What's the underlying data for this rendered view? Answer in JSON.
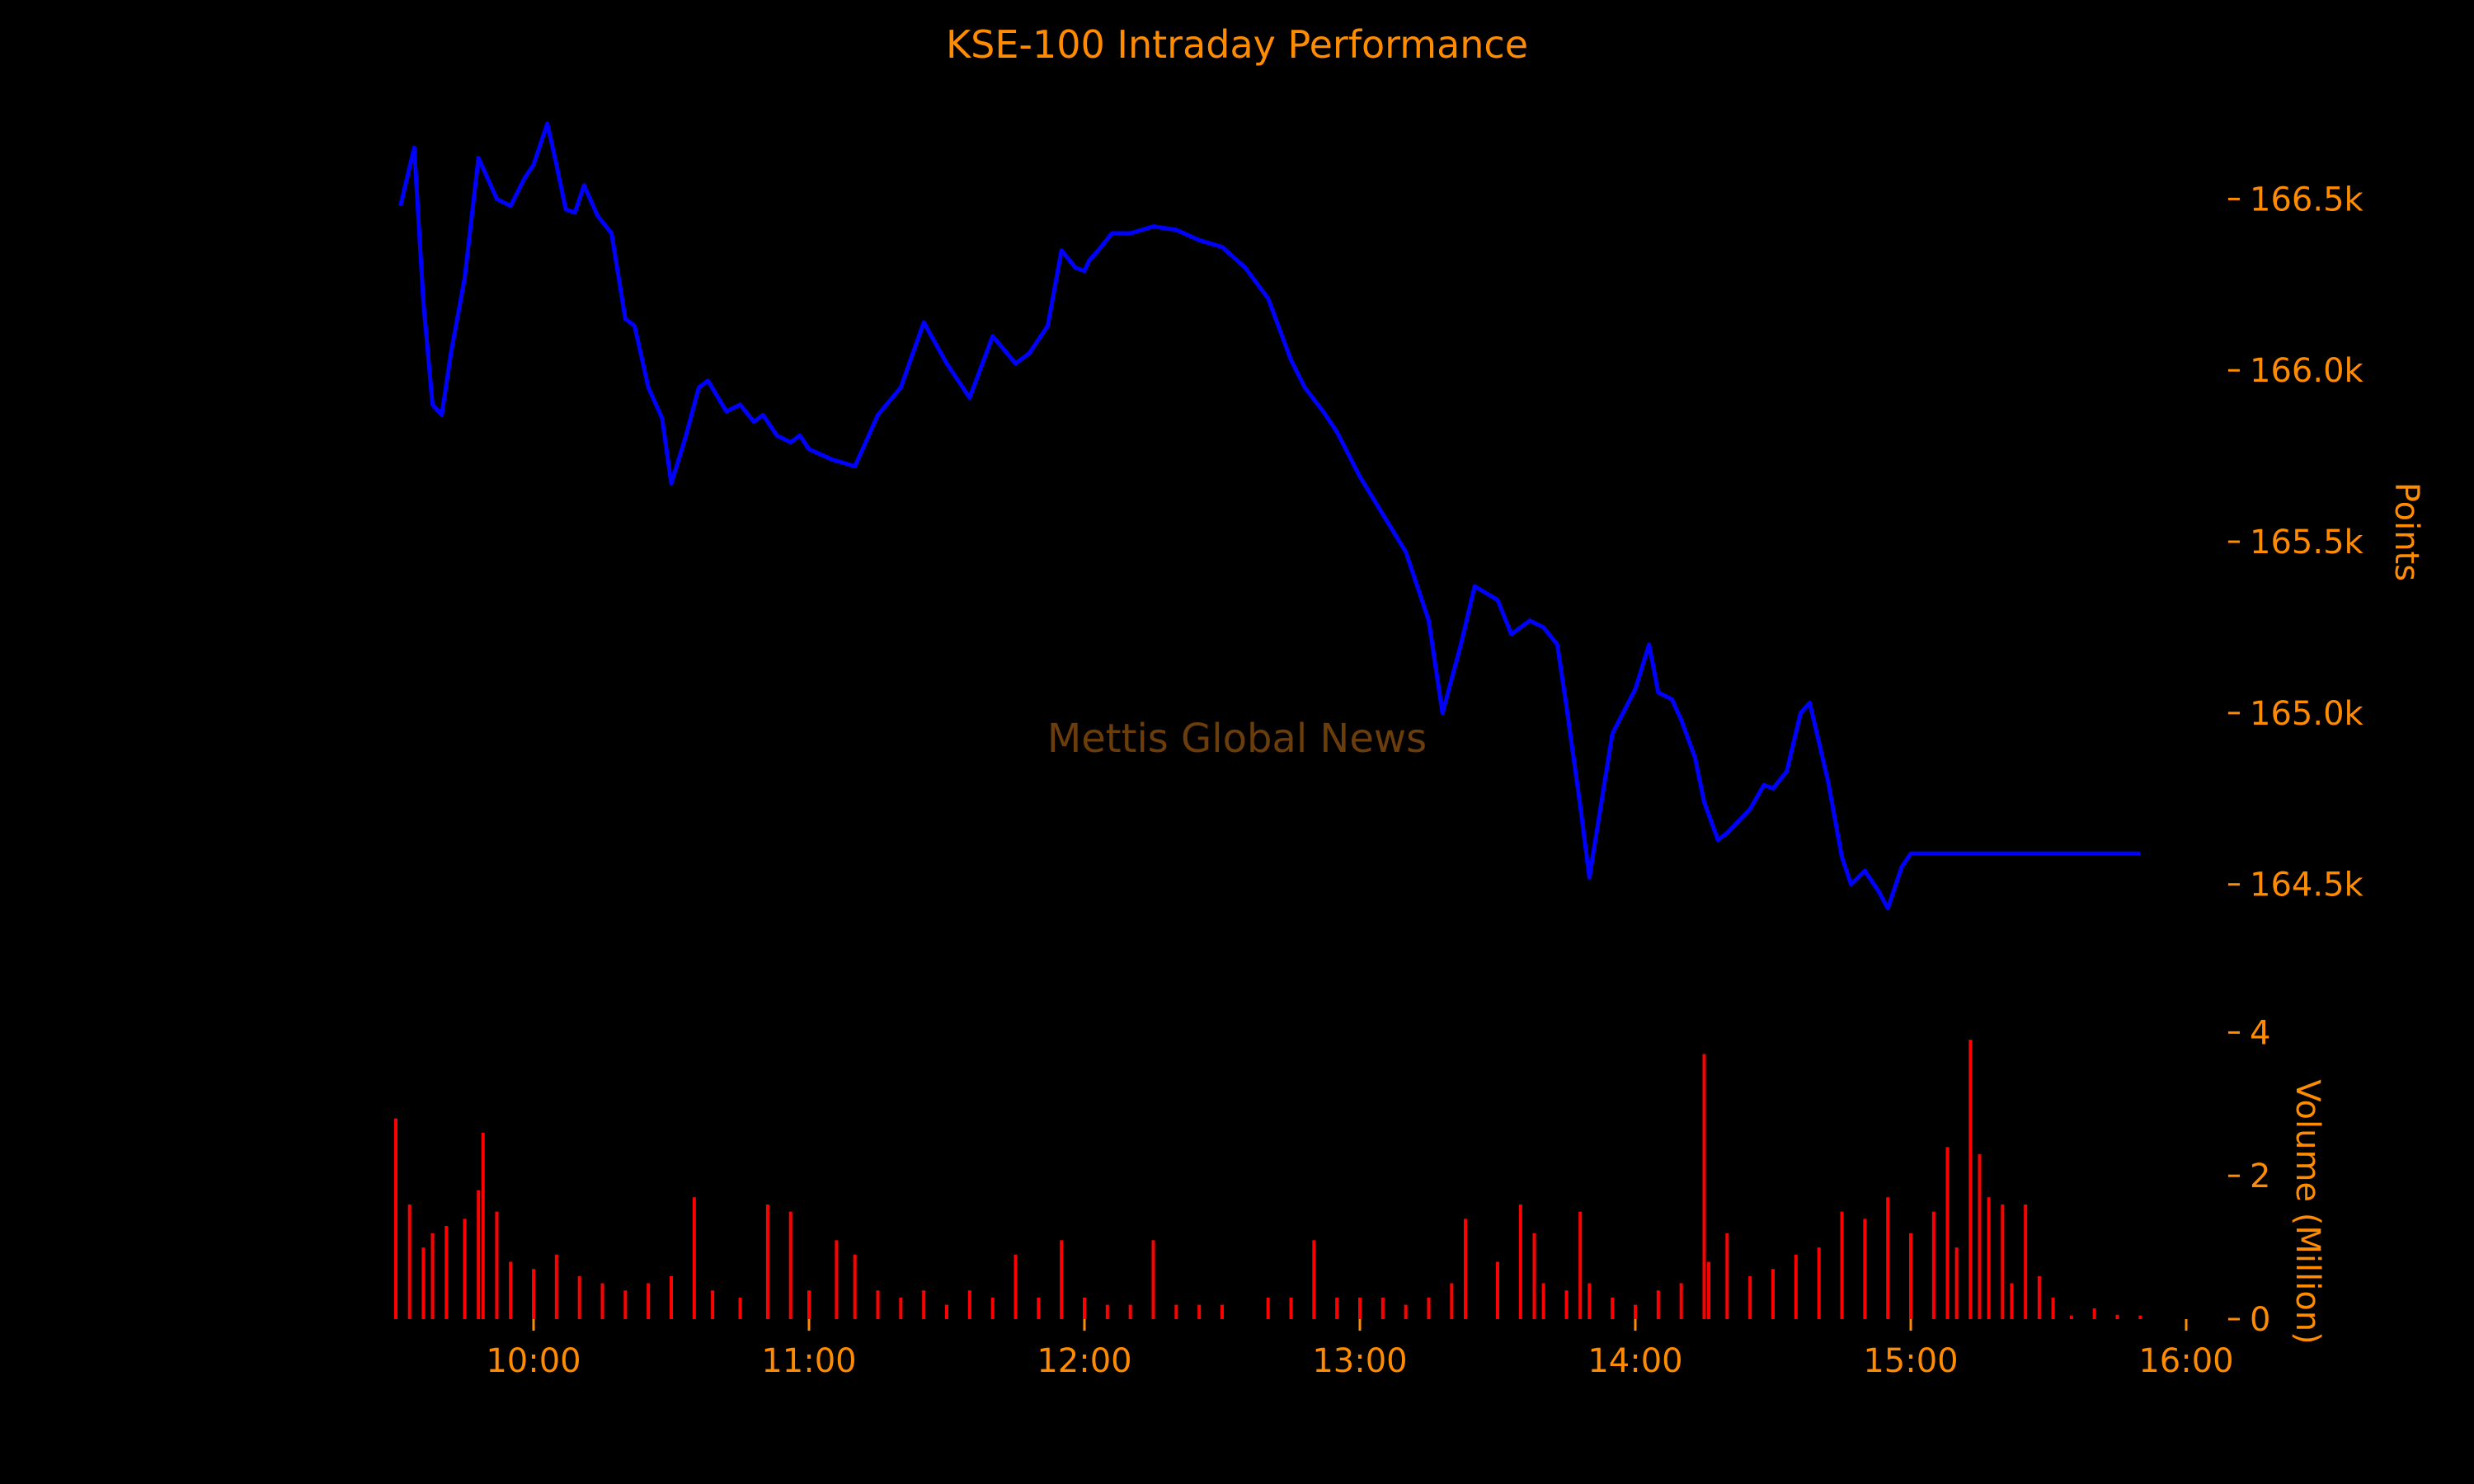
{
  "colors": {
    "background": "#000000",
    "text": "#ff8c00",
    "price_line": "#0000ff",
    "volume_bars": "#ff0000",
    "watermark": "#6b3d0b"
  },
  "chart_data": {
    "type": "line",
    "title": "KSE-100 Intraday Performance",
    "watermark": "Mettis Global News",
    "grid": false,
    "price": {
      "ylabel": "Points",
      "ylim": [
        164290,
        166780
      ],
      "yticks": [
        164500,
        165000,
        165500,
        166000,
        166500
      ],
      "ytick_labels": [
        "164.5k",
        "165.0k",
        "165.5k",
        "166.0k",
        "166.5k"
      ],
      "series": [
        {
          "x": [
            "09:31",
            "09:34",
            "09:36",
            "09:38",
            "09:40",
            "09:42",
            "09:45",
            "09:48",
            "09:52",
            "09:55",
            "09:58",
            "10:00",
            "10:03",
            "10:05",
            "10:07",
            "10:09",
            "10:11",
            "10:14",
            "10:17",
            "10:20",
            "10:22",
            "10:25",
            "10:28",
            "10:30",
            "10:33",
            "10:36",
            "10:38",
            "10:42",
            "10:45",
            "10:48",
            "10:50",
            "10:53",
            "10:56",
            "10:58",
            "11:00",
            "11:05",
            "11:10",
            "11:15",
            "11:20",
            "11:25",
            "11:30",
            "11:35",
            "11:40",
            "11:45",
            "11:48",
            "11:52",
            "11:55",
            "11:58",
            "12:00",
            "12:01",
            "12:03",
            "12:06",
            "12:10",
            "12:15",
            "12:20",
            "12:25",
            "12:30",
            "12:35",
            "12:40",
            "12:45",
            "12:48",
            "12:52",
            "12:55",
            "13:00",
            "13:05",
            "13:10",
            "13:15",
            "13:18",
            "13:22",
            "13:25",
            "13:30",
            "13:33",
            "13:35",
            "13:37",
            "13:40",
            "13:43",
            "13:45",
            "13:48",
            "13:50",
            "13:55",
            "14:00",
            "14:03",
            "14:05",
            "14:08",
            "14:10",
            "14:13",
            "14:15",
            "14:18",
            "14:20",
            "14:25",
            "14:28",
            "14:30",
            "14:33",
            "14:36",
            "14:38",
            "14:42",
            "14:45",
            "14:47",
            "14:50",
            "14:53",
            "14:55",
            "14:58",
            "15:00",
            "15:02",
            "15:05",
            "15:08",
            "15:10",
            "15:12",
            "15:15",
            "15:18",
            "15:20",
            "15:22",
            "15:24",
            "15:26",
            "15:28",
            "15:30",
            "15:31",
            "15:40",
            "15:50"
          ],
          "y": [
            166480,
            166650,
            166200,
            165900,
            165870,
            166050,
            166270,
            166620,
            166500,
            166480,
            166560,
            166600,
            166720,
            166600,
            166470,
            166460,
            166540,
            166450,
            166400,
            166150,
            166130,
            165950,
            165860,
            165670,
            165800,
            165950,
            165970,
            165880,
            165900,
            165850,
            165870,
            165810,
            165790,
            165810,
            165770,
            165740,
            165720,
            165870,
            165950,
            166140,
            166020,
            165920,
            166100,
            166020,
            166050,
            166130,
            166350,
            166300,
            166290,
            166320,
            166350,
            166400,
            166400,
            166420,
            166410,
            166380,
            166360,
            166300,
            166210,
            166030,
            165950,
            165880,
            165820,
            165690,
            165580,
            165470,
            165270,
            165000,
            165200,
            165370,
            165330,
            165230,
            165250,
            165270,
            165250,
            165200,
            165020,
            164730,
            164520,
            164940,
            165070,
            165200,
            165060,
            165040,
            164980,
            164870,
            164740,
            164630,
            164650,
            164720,
            164790,
            164780,
            164830,
            165000,
            165030,
            164800,
            164580,
            164500,
            164540,
            164480,
            164430,
            164550,
            164590,
            164590,
            164590,
            164590,
            164590,
            164590,
            164590,
            164590,
            164590,
            164590,
            164590,
            164590,
            164590,
            164590,
            164590,
            164590,
            164590
          ]
        }
      ]
    },
    "volume": {
      "ylabel": "Volume (Million)",
      "ylim": [
        0,
        4.2
      ],
      "yticks": [
        0,
        2,
        4
      ],
      "ytick_labels": [
        "0",
        "2",
        "4"
      ],
      "series": [
        {
          "x": [
            "09:30",
            "09:33",
            "09:36",
            "09:38",
            "09:41",
            "09:45",
            "09:48",
            "09:49",
            "09:52",
            "09:55",
            "10:00",
            "10:05",
            "10:10",
            "10:15",
            "10:20",
            "10:25",
            "10:30",
            "10:35",
            "10:39",
            "10:45",
            "10:51",
            "10:56",
            "11:00",
            "11:06",
            "11:10",
            "11:15",
            "11:20",
            "11:25",
            "11:30",
            "11:35",
            "11:40",
            "11:45",
            "11:50",
            "11:55",
            "12:00",
            "12:05",
            "12:10",
            "12:15",
            "12:20",
            "12:25",
            "12:30",
            "12:40",
            "12:45",
            "12:50",
            "12:55",
            "13:00",
            "13:05",
            "13:10",
            "13:15",
            "13:20",
            "13:23",
            "13:30",
            "13:35",
            "13:38",
            "13:40",
            "13:45",
            "13:48",
            "13:50",
            "13:55",
            "14:00",
            "14:05",
            "14:10",
            "14:15",
            "14:16",
            "14:20",
            "14:25",
            "14:30",
            "14:35",
            "14:40",
            "14:45",
            "14:50",
            "14:55",
            "15:00",
            "15:05",
            "15:08",
            "15:10",
            "15:13",
            "15:15",
            "15:17",
            "15:20",
            "15:22",
            "15:25",
            "15:28",
            "15:31",
            "15:35",
            "15:40",
            "15:45",
            "15:50"
          ],
          "y": [
            2.8,
            1.6,
            1.0,
            1.2,
            1.3,
            1.4,
            1.8,
            2.6,
            1.5,
            0.8,
            0.7,
            0.9,
            0.6,
            0.5,
            0.4,
            0.5,
            0.6,
            1.7,
            0.4,
            0.3,
            1.6,
            1.5,
            0.4,
            1.1,
            0.9,
            0.4,
            0.3,
            0.4,
            0.2,
            0.4,
            0.3,
            0.9,
            0.3,
            1.1,
            0.3,
            0.2,
            0.2,
            1.1,
            0.2,
            0.2,
            0.2,
            0.3,
            0.3,
            1.1,
            0.3,
            0.3,
            0.3,
            0.2,
            0.3,
            0.5,
            1.4,
            0.8,
            1.6,
            1.2,
            0.5,
            0.4,
            1.5,
            0.5,
            0.3,
            0.2,
            0.4,
            0.5,
            3.7,
            0.8,
            1.2,
            0.6,
            0.7,
            0.9,
            1.0,
            1.5,
            1.4,
            1.7,
            1.2,
            1.5,
            2.4,
            1.0,
            3.9,
            2.3,
            1.7,
            1.6,
            0.5,
            1.6,
            0.6,
            0.3,
            0.05,
            0.15,
            0.06,
            0.05
          ]
        }
      ]
    },
    "xaxis": {
      "tick_labels": [
        "10:00",
        "11:00",
        "12:00",
        "13:00",
        "14:00",
        "15:00",
        "16:00"
      ]
    }
  }
}
